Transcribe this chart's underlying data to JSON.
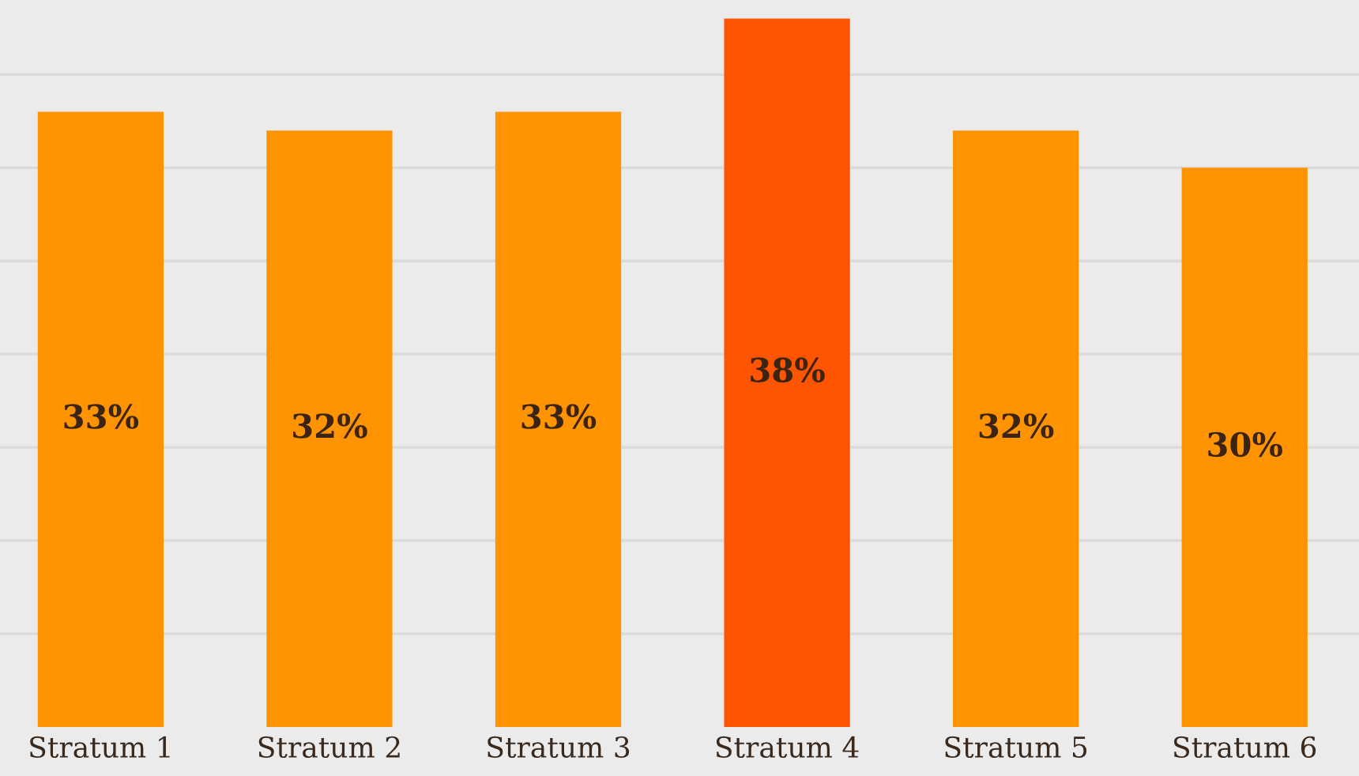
{
  "chart_data": {
    "type": "bar",
    "categories": [
      "Stratum 1",
      "Stratum 2",
      "Stratum 3",
      "Stratum 4",
      "Stratum 5",
      "Stratum 6"
    ],
    "values": [
      33,
      32,
      33,
      38,
      32,
      30
    ],
    "value_labels": [
      "33%",
      "32%",
      "33%",
      "38%",
      "32%",
      "30%"
    ],
    "colors": [
      "#ff9300",
      "#ff9300",
      "#ff9300",
      "#ff5400",
      "#ff9300",
      "#ff9300"
    ],
    "ylim": [
      0,
      39
    ],
    "yticks": [
      {
        "value": 5,
        "label": null
      },
      {
        "value": 10,
        "label": null
      },
      {
        "value": 15,
        "label": null
      },
      {
        "value": 20,
        "label": null
      },
      {
        "value": 25,
        "label": null
      },
      {
        "value": 30,
        "label": null
      },
      {
        "value": 35,
        "label": null
      }
    ],
    "grid": "y",
    "tick_labels": "x"
  }
}
